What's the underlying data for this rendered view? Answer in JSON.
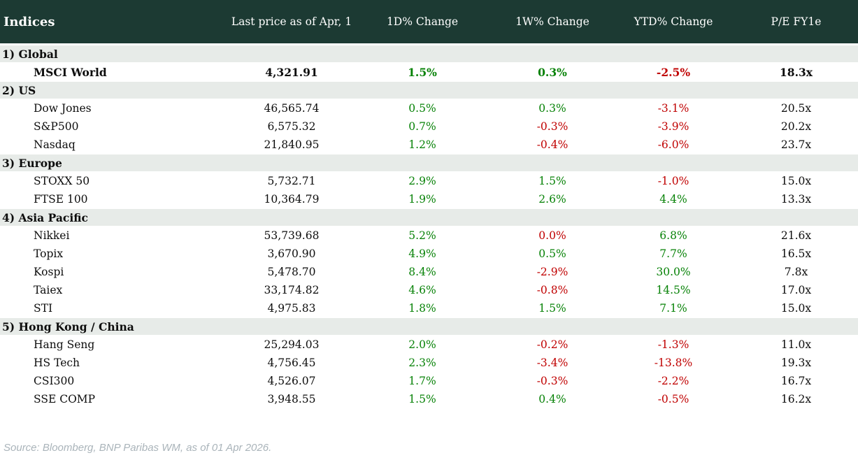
{
  "header": {
    "title": "Indices",
    "columns": [
      "Last price as of Apr, 1",
      "1D% Change",
      "1W% Change",
      "YTD% Change",
      "P/E FY1e"
    ]
  },
  "colors": {
    "header_bg": "#1c3a33",
    "section_bg": "#e7ebe8",
    "positive": "#078207",
    "negative": "#c00000"
  },
  "sections": [
    {
      "label": "1) Global",
      "rows": [
        {
          "name": "MSCI World",
          "bold": true,
          "price": "4,321.91",
          "changes": [
            {
              "text": "1.5%",
              "color": "green"
            },
            {
              "text": "0.3%",
              "color": "green"
            },
            {
              "text": "-2.5%",
              "color": "red"
            }
          ],
          "pe": "18.3x"
        }
      ]
    },
    {
      "label": "2) US",
      "rows": [
        {
          "name": "Dow Jones",
          "bold": false,
          "price": "46,565.74",
          "changes": [
            {
              "text": "0.5%",
              "color": "green"
            },
            {
              "text": "0.3%",
              "color": "green"
            },
            {
              "text": "-3.1%",
              "color": "red"
            }
          ],
          "pe": "20.5x"
        },
        {
          "name": "S&P500",
          "bold": false,
          "price": "6,575.32",
          "changes": [
            {
              "text": "0.7%",
              "color": "green"
            },
            {
              "text": "-0.3%",
              "color": "red"
            },
            {
              "text": "-3.9%",
              "color": "red"
            }
          ],
          "pe": "20.2x"
        },
        {
          "name": "Nasdaq",
          "bold": false,
          "price": "21,840.95",
          "changes": [
            {
              "text": "1.2%",
              "color": "green"
            },
            {
              "text": "-0.4%",
              "color": "red"
            },
            {
              "text": "-6.0%",
              "color": "red"
            }
          ],
          "pe": "23.7x"
        }
      ]
    },
    {
      "label": "3) Europe",
      "rows": [
        {
          "name": "STOXX 50",
          "bold": false,
          "price": "5,732.71",
          "changes": [
            {
              "text": "2.9%",
              "color": "green"
            },
            {
              "text": "1.5%",
              "color": "green"
            },
            {
              "text": "-1.0%",
              "color": "red"
            }
          ],
          "pe": "15.0x"
        },
        {
          "name": "FTSE 100",
          "bold": false,
          "price": "10,364.79",
          "changes": [
            {
              "text": "1.9%",
              "color": "green"
            },
            {
              "text": "2.6%",
              "color": "green"
            },
            {
              "text": "4.4%",
              "color": "green"
            }
          ],
          "pe": "13.3x"
        }
      ]
    },
    {
      "label": "4) Asia Pacific",
      "rows": [
        {
          "name": "Nikkei",
          "bold": false,
          "price": "53,739.68",
          "changes": [
            {
              "text": "5.2%",
              "color": "green"
            },
            {
              "text": "0.0%",
              "color": "red"
            },
            {
              "text": "6.8%",
              "color": "green"
            }
          ],
          "pe": "21.6x"
        },
        {
          "name": "Topix",
          "bold": false,
          "price": "3,670.90",
          "changes": [
            {
              "text": "4.9%",
              "color": "green"
            },
            {
              "text": "0.5%",
              "color": "green"
            },
            {
              "text": "7.7%",
              "color": "green"
            }
          ],
          "pe": "16.5x"
        },
        {
          "name": "Kospi",
          "bold": false,
          "price": "5,478.70",
          "changes": [
            {
              "text": "8.4%",
              "color": "green"
            },
            {
              "text": "-2.9%",
              "color": "red"
            },
            {
              "text": "30.0%",
              "color": "green"
            }
          ],
          "pe": "7.8x"
        },
        {
          "name": "Taiex",
          "bold": false,
          "price": "33,174.82",
          "changes": [
            {
              "text": "4.6%",
              "color": "green"
            },
            {
              "text": "-0.8%",
              "color": "red"
            },
            {
              "text": "14.5%",
              "color": "green"
            }
          ],
          "pe": "17.0x"
        },
        {
          "name": "STI",
          "bold": false,
          "price": "4,975.83",
          "changes": [
            {
              "text": "1.8%",
              "color": "green"
            },
            {
              "text": "1.5%",
              "color": "green"
            },
            {
              "text": "7.1%",
              "color": "green"
            }
          ],
          "pe": "15.0x"
        }
      ]
    },
    {
      "label": "5) Hong Kong / China",
      "rows": [
        {
          "name": "Hang Seng",
          "bold": false,
          "price": "25,294.03",
          "changes": [
            {
              "text": "2.0%",
              "color": "green"
            },
            {
              "text": "-0.2%",
              "color": "red"
            },
            {
              "text": "-1.3%",
              "color": "red"
            }
          ],
          "pe": "11.0x"
        },
        {
          "name": "HS Tech",
          "bold": false,
          "price": "4,756.45",
          "changes": [
            {
              "text": "2.3%",
              "color": "green"
            },
            {
              "text": "-3.4%",
              "color": "red"
            },
            {
              "text": "-13.8%",
              "color": "red"
            }
          ],
          "pe": "19.3x"
        },
        {
          "name": "CSI300",
          "bold": false,
          "price": "4,526.07",
          "changes": [
            {
              "text": "1.7%",
              "color": "green"
            },
            {
              "text": "-0.3%",
              "color": "red"
            },
            {
              "text": "-2.2%",
              "color": "red"
            }
          ],
          "pe": "16.7x"
        },
        {
          "name": "SSE COMP",
          "bold": false,
          "price": "3,948.55",
          "changes": [
            {
              "text": "1.5%",
              "color": "green"
            },
            {
              "text": "0.4%",
              "color": "green"
            },
            {
              "text": "-0.5%",
              "color": "red"
            }
          ],
          "pe": "16.2x"
        }
      ]
    }
  ],
  "footer": {
    "source": "Source: Bloomberg, BNP Paribas WM, as of 01 Apr 2026."
  },
  "chart_data": {
    "type": "table",
    "title": "Indices",
    "columns": [
      "Indices",
      "Last price as of Apr, 1",
      "1D% Change",
      "1W% Change",
      "YTD% Change",
      "P/E FY1e"
    ],
    "rows": [
      [
        "1) Global / MSCI World",
        4321.91,
        1.5,
        0.3,
        -2.5,
        18.3
      ],
      [
        "2) US / Dow Jones",
        46565.74,
        0.5,
        0.3,
        -3.1,
        20.5
      ],
      [
        "2) US / S&P500",
        6575.32,
        0.7,
        -0.3,
        -3.9,
        20.2
      ],
      [
        "2) US / Nasdaq",
        21840.95,
        1.2,
        -0.4,
        -6.0,
        23.7
      ],
      [
        "3) Europe / STOXX 50",
        5732.71,
        2.9,
        1.5,
        -1.0,
        15.0
      ],
      [
        "3) Europe / FTSE 100",
        10364.79,
        1.9,
        2.6,
        4.4,
        13.3
      ],
      [
        "4) Asia Pacific / Nikkei",
        53739.68,
        5.2,
        0.0,
        6.8,
        21.6
      ],
      [
        "4) Asia Pacific / Topix",
        3670.9,
        4.9,
        0.5,
        7.7,
        16.5
      ],
      [
        "4) Asia Pacific / Kospi",
        5478.7,
        8.4,
        -2.9,
        30.0,
        7.8
      ],
      [
        "4) Asia Pacific / Taiex",
        33174.82,
        4.6,
        -0.8,
        14.5,
        17.0
      ],
      [
        "4) Asia Pacific / STI",
        4975.83,
        1.8,
        1.5,
        7.1,
        15.0
      ],
      [
        "5) Hong Kong / China / Hang Seng",
        25294.03,
        2.0,
        -0.2,
        -1.3,
        11.0
      ],
      [
        "5) Hong Kong / China / HS Tech",
        4756.45,
        2.3,
        -3.4,
        -13.8,
        19.3
      ],
      [
        "5) Hong Kong / China / CSI300",
        4526.07,
        1.7,
        -0.3,
        -2.2,
        16.7
      ],
      [
        "5) Hong Kong / China / SSE COMP",
        3948.55,
        1.5,
        0.4,
        -0.5,
        16.2
      ]
    ]
  }
}
